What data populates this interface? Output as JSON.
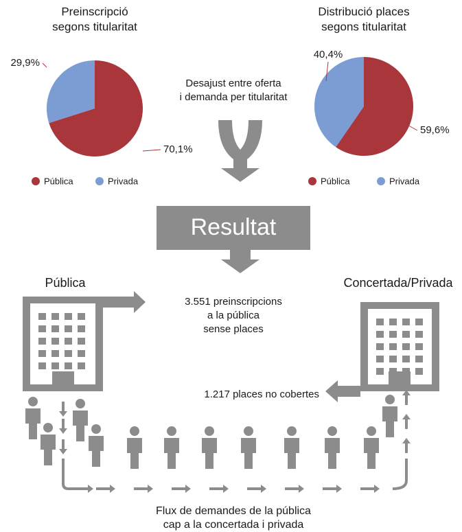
{
  "chart_data": [
    {
      "type": "pie",
      "title": [
        "Preinscripció",
        "segons titularitat"
      ],
      "categories": [
        "Pública",
        "Privada"
      ],
      "values": [
        70.1,
        29.9
      ],
      "value_labels": [
        "70,1%",
        "29,9%"
      ],
      "colors": [
        "#a8363a",
        "#7b9dd3"
      ]
    },
    {
      "type": "pie",
      "title": [
        "Distribució places",
        "segons titularitat"
      ],
      "categories": [
        "Pública",
        "Privada"
      ],
      "values": [
        59.6,
        40.4
      ],
      "value_labels": [
        "59,6%",
        "40,4%"
      ],
      "colors": [
        "#a8363a",
        "#7b9dd3"
      ]
    }
  ],
  "mismatch_label": [
    "Desajust entre oferta",
    "i demanda per titularitat"
  ],
  "result_label": "Resultat",
  "public_label": "Pública",
  "private_label": "Concertada/Privada",
  "unplaced_label": [
    "3.551 preinscripcions",
    "a la pública",
    "sense places"
  ],
  "uncovered_label": "1.217 places no cobertes",
  "flow_label": [
    "Flux de demandes de la pública",
    "cap a la concertada i privada"
  ]
}
